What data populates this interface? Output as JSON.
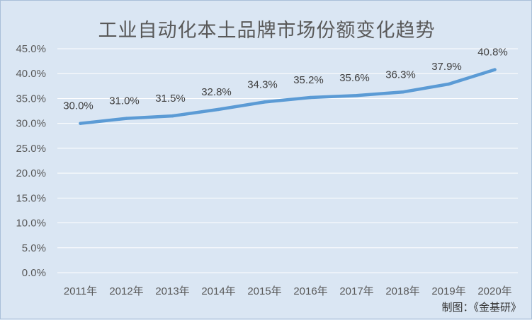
{
  "chart_data": {
    "type": "line",
    "title": "工业自动化本土品牌市场份额变化趋势",
    "categories": [
      "2011年",
      "2012年",
      "2013年",
      "2014年",
      "2015年",
      "2016年",
      "2017年",
      "2018年",
      "2019年",
      "2020年"
    ],
    "series": [
      {
        "values": [
          30.0,
          31.0,
          31.5,
          32.8,
          34.3,
          35.2,
          35.6,
          36.3,
          37.9,
          40.8
        ]
      }
    ],
    "data_labels": [
      "30.0%",
      "31.0%",
      "31.5%",
      "32.8%",
      "34.3%",
      "35.2%",
      "35.6%",
      "36.3%",
      "37.9%",
      "40.8%"
    ],
    "y_ticks": [
      "0.0%",
      "5.0%",
      "10.0%",
      "15.0%",
      "20.0%",
      "25.0%",
      "30.0%",
      "35.0%",
      "40.0%",
      "45.0%"
    ],
    "ylim": [
      0,
      45
    ],
    "grid": true,
    "legend": "none",
    "xlabel": "",
    "ylabel": ""
  },
  "source_note": "制图：《金基研》",
  "colors": {
    "background": "#dae6f3",
    "line": "#5b9bd5",
    "gridline": "#ffffff",
    "text": "#595959"
  }
}
